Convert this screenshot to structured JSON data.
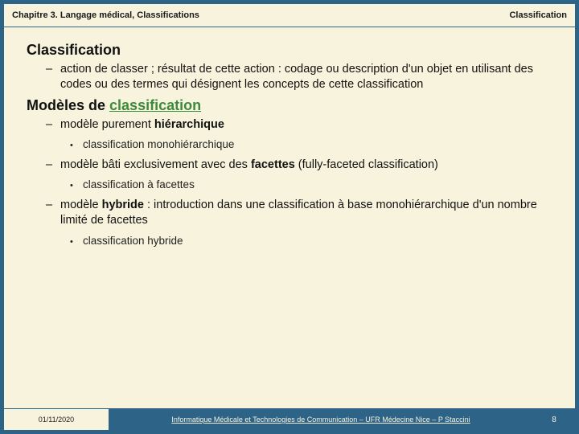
{
  "header": {
    "chapter": "Chapitre 3. Langage médical, Classifications",
    "topic": "Classification"
  },
  "body": {
    "h1": "Classification",
    "def": "action de classer ; résultat de cette action : codage ou description d'un objet en utilisant des codes ou des termes qui désignent les concepts de cette classification",
    "h2_prefix": "Modèles de ",
    "h2_link": "classification",
    "m1_a": "modèle purement ",
    "m1_b": "hiérarchique",
    "m1_sub": "classification monohiérarchique",
    "m2_a": "modèle bâti exclusivement avec des ",
    "m2_b": "facettes",
    "m2_c": " (fully-faceted classification)",
    "m2_sub": "classification à facettes",
    "m3_a": "modèle ",
    "m3_b": "hybride",
    "m3_c": " : introduction dans une classification à base monohiérarchique d'un nombre limité de facettes",
    "m3_sub": "classification hybride"
  },
  "footer": {
    "date": "01/11/2020",
    "center": "Informatique Médicale et Technologies de Communication – UFR Médecine Nice – P Staccini",
    "page": "8"
  },
  "colors": {
    "frame": "#2d6387",
    "paper": "#f8f3dc",
    "link": "#3d8a3d"
  }
}
